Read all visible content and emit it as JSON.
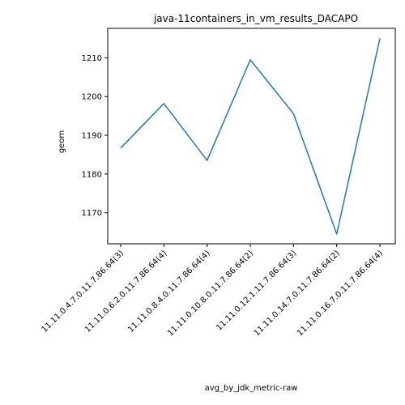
{
  "chart_data": {
    "type": "line",
    "title": "java-11containers_in_vm_results_DACAPO",
    "xlabel": "avg_by_jdk_metric-raw",
    "ylabel": "geom",
    "categories": [
      "11.11.0.4.7.0.11.7.86.64(3)",
      "11.11.0.6.2.0.11.7.86.64(4)",
      "11.11.0.8.4.0.11.7.86.64(4)",
      "11.11.0.10.8.0.11.7.86.64(2)",
      "11.11.0.12.1.11.7.86.64(3)",
      "11.11.0.14.7.0.11.7.86.64(2)",
      "11.11.0.16.7.0.11.7.86.64(4)"
    ],
    "series": [
      {
        "values": [
          1186.7,
          1198.2,
          1183.5,
          1209.5,
          1195.6,
          1164.5,
          1215.0
        ]
      }
    ],
    "ylim": [
      1162.0,
      1217.6
    ],
    "yticks": [
      1170,
      1180,
      1190,
      1200,
      1210
    ],
    "grid": false,
    "line_color": "#1f77b4"
  }
}
